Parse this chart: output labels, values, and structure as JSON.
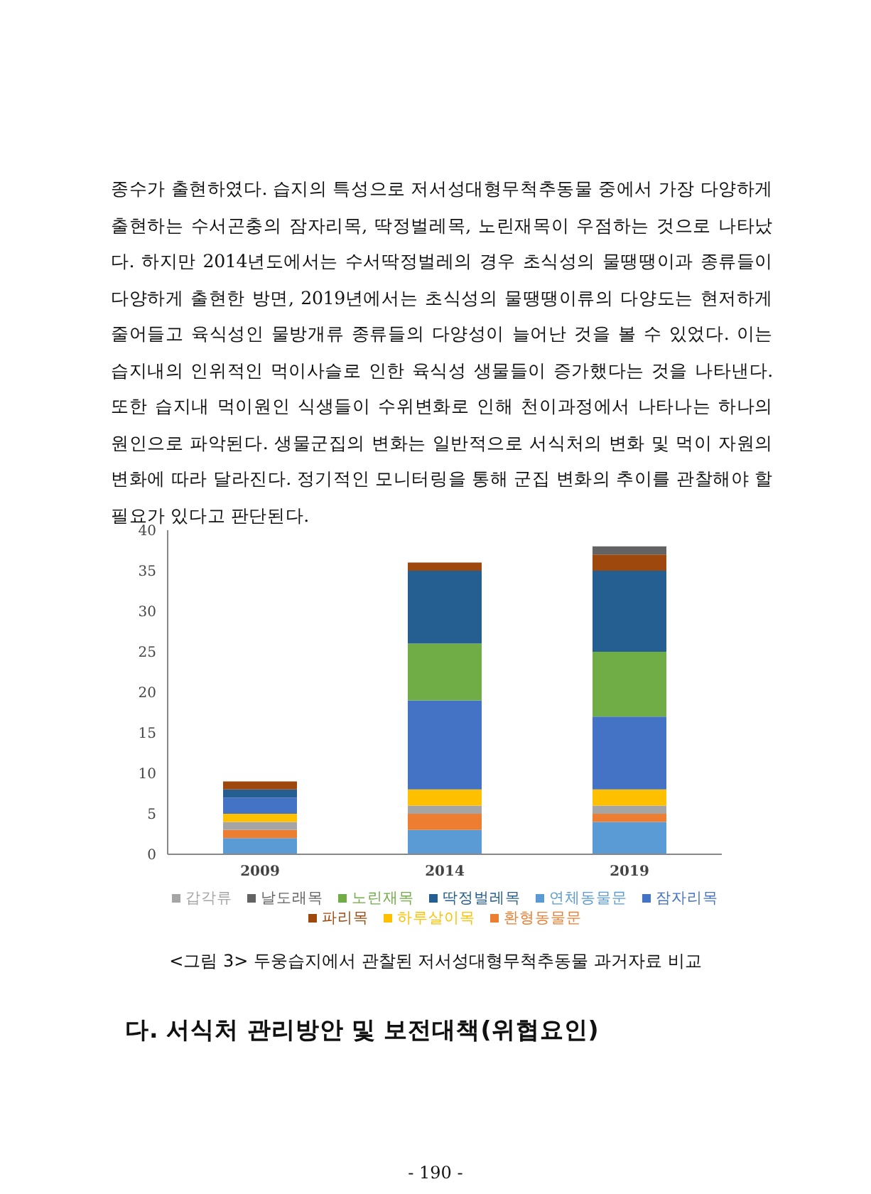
{
  "chart_data": {
    "type": "bar",
    "stacked": true,
    "categories": [
      "2009",
      "2014",
      "2019"
    ],
    "series": [
      {
        "name": "연체동물문",
        "color": "#5b9bd5",
        "values": [
          2,
          3,
          4
        ]
      },
      {
        "name": "환형동물문",
        "color": "#ed7d31",
        "values": [
          1,
          2,
          1
        ]
      },
      {
        "name": "갑각류",
        "color": "#a5a5a5",
        "values": [
          1,
          1,
          1
        ]
      },
      {
        "name": "하루살이목",
        "color": "#ffc000",
        "values": [
          1,
          2,
          2
        ]
      },
      {
        "name": "잠자리목",
        "color": "#4472c4",
        "values": [
          2,
          11,
          9
        ]
      },
      {
        "name": "노린재목",
        "color": "#70ad47",
        "values": [
          0,
          7,
          8
        ]
      },
      {
        "name": "딱정벌레목",
        "color": "#255e91",
        "values": [
          1,
          9,
          10
        ]
      },
      {
        "name": "파리목",
        "color": "#9e480e",
        "values": [
          1,
          1,
          2
        ]
      },
      {
        "name": "날도래목",
        "color": "#636363",
        "values": [
          0,
          0,
          1
        ]
      }
    ],
    "ylim": [
      0,
      40
    ],
    "yticks": [
      0,
      5,
      10,
      15,
      20,
      25,
      30,
      35,
      40
    ],
    "grid": false,
    "legend": "bottom",
    "annotations": [
      "종수가 출현하였다. 습지의 특성으로 저서성대형무척추동물 중에서 가장 다양하게 출현하는 수서곤충의 잠자리목, 딱정벌레목, 노린재목이 우점하는 것으로 나타났다. 하지만 2014년도에서는 수서딱정벌레의 경우 초식성의 물땡땡이과 종류들이 다양하게 출현한 방면, 2019년에서는 초식성의 물땡땡이류의 다양도는 현저하게 줄어들고 육식성인 물방개류 종류들의 다양성이 늘어난 것을 볼 수 있었다. 이는 습지내의 인위적인 먹이사슬로 인한 육식성 생물들이 증가했다는 것을 나타낸다. 또한 습지내 먹이원인 식생들이 수위변화로 인해 천이과정에서 나타나는 하나의 원인으로 파악된다. 생물군집의 변화는 일반적으로 서식처의 변화 및 먹이 자원의 변화에 따라 달라진다. 정기적인 모니터링을 통해 군집 변화의 추이를 관찰해야 할 필요가 있다고 판단된다.",
      "<그림 3> 두웅습지에서 관찰된 저서성대형무척추동물 과거자료 비교",
      "다. 서식처 관리방안 및 보전대책(위협요인)",
      "- 190 -"
    ]
  }
}
